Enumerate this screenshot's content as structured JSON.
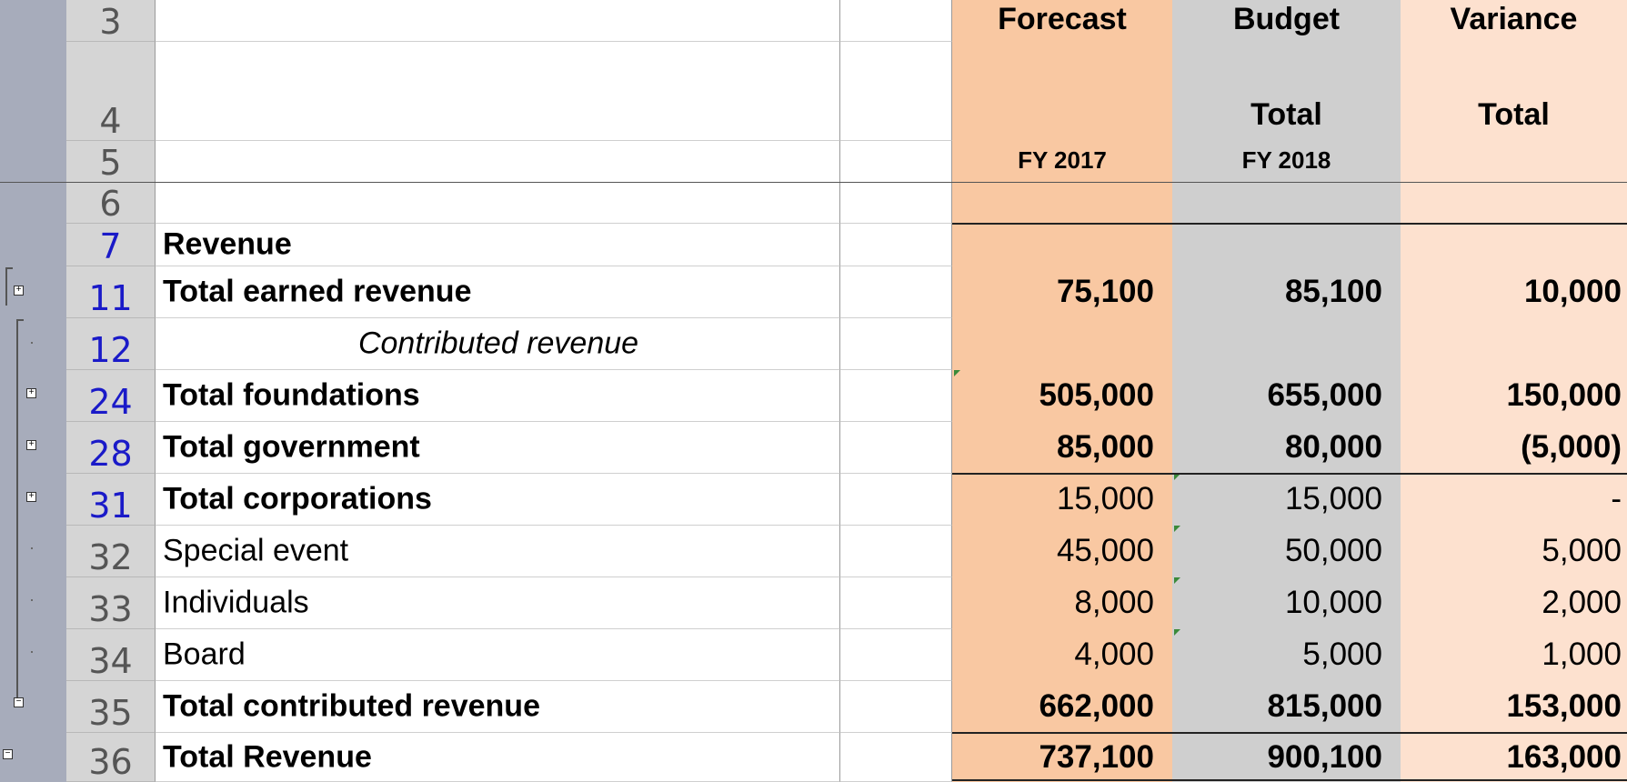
{
  "header": {
    "row3": {
      "row_num": "3",
      "forecast": "Forecast",
      "budget": "Budget",
      "variance": "Variance"
    },
    "row4": {
      "row_num": "4",
      "budget": "Total",
      "variance": "Total"
    },
    "row5": {
      "row_num": "5",
      "forecast": "FY 2017",
      "budget": "FY 2018"
    },
    "row6": {
      "row_num": "6"
    }
  },
  "rows": [
    {
      "row_num": "7",
      "label": "Revenue",
      "forecast": "",
      "budget": "",
      "variance": ""
    },
    {
      "row_num": "11",
      "label": "Total earned revenue",
      "forecast": "75,100",
      "budget": "85,100",
      "variance": "10,000"
    },
    {
      "row_num": "12",
      "label": "Contributed revenue",
      "forecast": "",
      "budget": "",
      "variance": ""
    },
    {
      "row_num": "24",
      "label": "Total foundations",
      "forecast": "505,000",
      "budget": "655,000",
      "variance": "150,000"
    },
    {
      "row_num": "28",
      "label": "Total government",
      "forecast": "85,000",
      "budget": "80,000",
      "variance": "(5,000)"
    },
    {
      "row_num": "31",
      "label": "Total corporations",
      "forecast": "15,000",
      "budget": "15,000",
      "variance": "-"
    },
    {
      "row_num": "32",
      "label": "Special event",
      "forecast": "45,000",
      "budget": "50,000",
      "variance": "5,000"
    },
    {
      "row_num": "33",
      "label": "Individuals",
      "forecast": "8,000",
      "budget": "10,000",
      "variance": "2,000"
    },
    {
      "row_num": "34",
      "label": "Board",
      "forecast": "4,000",
      "budget": "5,000",
      "variance": "1,000"
    },
    {
      "row_num": "35",
      "label": "Total contributed revenue",
      "forecast": "662,000",
      "budget": "815,000",
      "variance": "153,000"
    },
    {
      "row_num": "36",
      "label": "Total Revenue",
      "forecast": "737,100",
      "budget": "900,100",
      "variance": "163,000"
    }
  ],
  "colors": {
    "forecast_column": "#f9c8a2",
    "budget_column": "#cfcfcf",
    "variance_column": "#fde1cf",
    "row_header": "#d5d5d5",
    "outline_bar": "#a7acbb",
    "selected_row_number": "#1a1ac8"
  },
  "outline_buttons": {
    "expand": "+",
    "collapse": "−"
  }
}
